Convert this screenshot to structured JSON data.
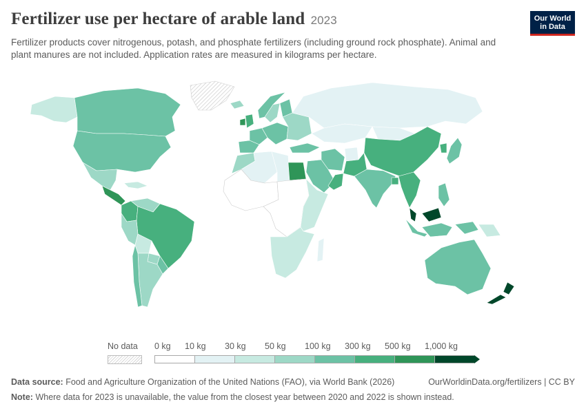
{
  "header": {
    "title": "Fertilizer use per hectare of arable land",
    "year": "2023",
    "subtitle": "Fertilizer products cover nitrogenous, potash, and phosphate fertilizers (including ground rock phosphate). Animal and plant manures are not included. Application rates are measured in kilograms per hectare."
  },
  "logo": {
    "line1": "Our World",
    "line2": "in Data"
  },
  "legend": {
    "no_data_label": "No data",
    "ticks": [
      "0 kg",
      "10 kg",
      "30 kg",
      "50 kg",
      "100 kg",
      "300 kg",
      "500 kg",
      "1,000 kg"
    ],
    "colors": [
      "#ffffff",
      "#e3f2f4",
      "#c7eae1",
      "#9dd8c6",
      "#6cc2a5",
      "#47b07e",
      "#2f9558",
      "#00472a"
    ],
    "no_data_color": "#e5e5e5"
  },
  "footer": {
    "source_label": "Data source:",
    "source_text": "Food and Agriculture Organization of the United Nations (FAO), via World Bank (2026)",
    "url": "OurWorldinData.org/fertilizers | CC BY",
    "note_label": "Note:",
    "note_text": "Where data for 2023 is unavailable, the value from the closest year between 2020 and 2022 is shown instead."
  },
  "map_data": {
    "regions": [
      {
        "name": "Canada",
        "bin": 4
      },
      {
        "name": "Alaska",
        "bin": 2
      },
      {
        "name": "Greenland",
        "bin": -1
      },
      {
        "name": "United States",
        "bin": 4
      },
      {
        "name": "Mexico",
        "bin": 3
      },
      {
        "name": "Central America",
        "bin": 6
      },
      {
        "name": "Caribbean",
        "bin": 2
      },
      {
        "name": "Colombia",
        "bin": 5
      },
      {
        "name": "Venezuela",
        "bin": 3
      },
      {
        "name": "Brazil",
        "bin": 5
      },
      {
        "name": "Peru",
        "bin": 3
      },
      {
        "name": "Bolivia",
        "bin": 2
      },
      {
        "name": "Paraguay",
        "bin": 3
      },
      {
        "name": "Argentina",
        "bin": 3
      },
      {
        "name": "Chile",
        "bin": 4
      },
      {
        "name": "Uruguay",
        "bin": 4
      },
      {
        "name": "Iceland",
        "bin": 3
      },
      {
        "name": "Norway",
        "bin": 4
      },
      {
        "name": "Sweden",
        "bin": 3
      },
      {
        "name": "Finland",
        "bin": 4
      },
      {
        "name": "United Kingdom",
        "bin": 5
      },
      {
        "name": "Ireland",
        "bin": 6
      },
      {
        "name": "France",
        "bin": 4
      },
      {
        "name": "Spain",
        "bin": 4
      },
      {
        "name": "Central Europe",
        "bin": 4
      },
      {
        "name": "Eastern Europe",
        "bin": 3
      },
      {
        "name": "Russia",
        "bin": 1
      },
      {
        "name": "Kazakhstan",
        "bin": 1
      },
      {
        "name": "Turkey",
        "bin": 4
      },
      {
        "name": "Iran",
        "bin": 4
      },
      {
        "name": "Saudi Arabia",
        "bin": 4
      },
      {
        "name": "Oman",
        "bin": 5
      },
      {
        "name": "Egypt",
        "bin": 6
      },
      {
        "name": "Libya",
        "bin": 1
      },
      {
        "name": "Algeria",
        "bin": 1
      },
      {
        "name": "Morocco",
        "bin": 3
      },
      {
        "name": "West Africa",
        "bin": 0
      },
      {
        "name": "Central Africa",
        "bin": 0
      },
      {
        "name": "East Africa",
        "bin": 2
      },
      {
        "name": "Southern Africa",
        "bin": 2
      },
      {
        "name": "Madagascar",
        "bin": 1
      },
      {
        "name": "Afghanistan",
        "bin": 1
      },
      {
        "name": "Pakistan",
        "bin": 5
      },
      {
        "name": "India",
        "bin": 4
      },
      {
        "name": "Bangladesh",
        "bin": 5
      },
      {
        "name": "Mongolia",
        "bin": 1
      },
      {
        "name": "China",
        "bin": 5
      },
      {
        "name": "South Korea",
        "bin": 5
      },
      {
        "name": "Japan",
        "bin": 4
      },
      {
        "name": "Southeast Asia",
        "bin": 5
      },
      {
        "name": "Malaysia",
        "bin": 7
      },
      {
        "name": "Indonesia",
        "bin": 4
      },
      {
        "name": "Papua New Guinea",
        "bin": 2
      },
      {
        "name": "Philippines",
        "bin": 4
      },
      {
        "name": "Australia",
        "bin": 4
      },
      {
        "name": "New Zealand",
        "bin": 7
      }
    ]
  }
}
